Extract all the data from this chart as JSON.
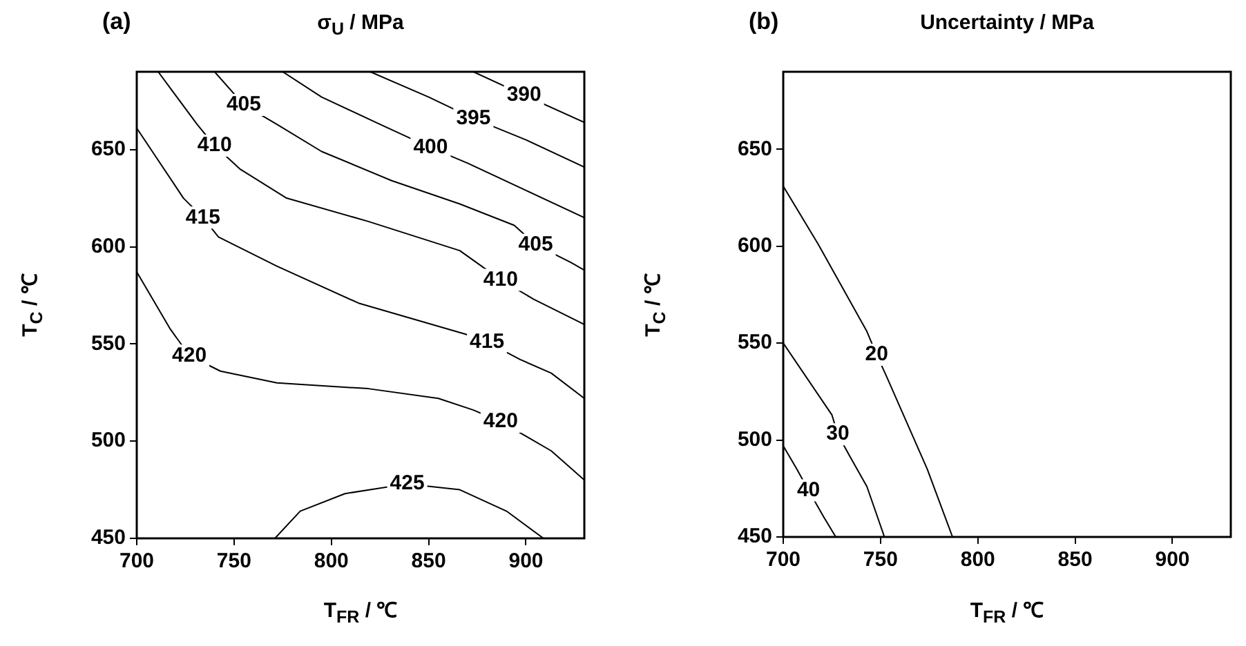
{
  "chart_data": [
    {
      "type": "line",
      "title": "σ$_{U}$ / MPa",
      "xlabel": "T$_{FR}$ / ℃",
      "ylabel": "T$_{C}$ / ℃",
      "xlim": [
        700,
        930
      ],
      "xticks": [
        700,
        750,
        800,
        850,
        900
      ],
      "ylim": [
        450,
        690
      ],
      "yticks": [
        450,
        500,
        550,
        600,
        650
      ],
      "series": [
        {
          "color": "#000000",
          "x": [
            873,
            899,
            930
          ],
          "values": [
            690,
            678,
            664
          ]
        },
        {
          "color": "#000000",
          "x": [
            820,
            850,
            873,
            900,
            930
          ],
          "values": [
            690,
            677,
            666,
            655,
            641
          ]
        },
        {
          "color": "#000000",
          "x": [
            775,
            795,
            825,
            851,
            870,
            900,
            930
          ],
          "values": [
            690,
            677,
            663,
            651,
            643,
            629,
            615
          ]
        },
        {
          "color": "#000000",
          "x": [
            740,
            755,
            772,
            795,
            831,
            866,
            894,
            905,
            923,
            930
          ],
          "values": [
            690,
            673,
            663,
            649,
            634,
            622,
            611,
            601,
            592,
            588
          ]
        },
        {
          "color": "#000000",
          "x": [
            711,
            731,
            740,
            753,
            777,
            819,
            866,
            887,
            904,
            930
          ],
          "values": [
            690,
            663,
            652,
            640,
            625,
            613,
            598,
            583,
            573,
            560
          ]
        },
        {
          "color": "#000000",
          "x": [
            700,
            724,
            734,
            742,
            772,
            814,
            869,
            880,
            897,
            913,
            930
          ],
          "values": [
            661,
            625,
            615,
            605,
            590,
            571,
            555,
            551,
            542,
            535,
            522
          ]
        },
        {
          "color": "#000000",
          "x": [
            700,
            717,
            727,
            743,
            772,
            819,
            855,
            873,
            887,
            901,
            913,
            930
          ],
          "values": [
            587,
            558,
            544,
            536,
            530,
            527,
            522,
            516,
            510,
            502,
            495,
            480
          ]
        },
        {
          "color": "#000000",
          "x": [
            771,
            784,
            807,
            839,
            866,
            890,
            909
          ],
          "values": [
            450,
            464,
            473,
            478,
            475,
            464,
            450
          ]
        }
      ],
      "annotations": [
        "(a)",
        {
          "text": "390",
          "x": 899,
          "y": 678
        },
        {
          "text": "395",
          "x": 873,
          "y": 666
        },
        {
          "text": "400",
          "x": 851,
          "y": 651
        },
        {
          "text": "405",
          "x": 755,
          "y": 673
        },
        {
          "text": "405",
          "x": 905,
          "y": 601
        },
        {
          "text": "410",
          "x": 740,
          "y": 652
        },
        {
          "text": "410",
          "x": 887,
          "y": 583
        },
        {
          "text": "415",
          "x": 734,
          "y": 615
        },
        {
          "text": "415",
          "x": 880,
          "y": 551
        },
        {
          "text": "420",
          "x": 727,
          "y": 544
        },
        {
          "text": "420",
          "x": 887,
          "y": 510
        },
        {
          "text": "425",
          "x": 839,
          "y": 478
        }
      ]
    },
    {
      "type": "line",
      "title": "Uncertainty / MPa",
      "xlabel": "T$_{FR}$ / ℃",
      "ylabel": "T$_{C}$ / ℃",
      "xlim": [
        700,
        930
      ],
      "xticks": [
        700,
        750,
        800,
        850,
        900
      ],
      "ylim": [
        450,
        690
      ],
      "yticks": [
        450,
        500,
        550,
        600,
        650
      ],
      "series": [
        {
          "color": "#000000",
          "x": [
            700,
            718,
            743,
            748,
            753,
            774,
            787
          ],
          "values": [
            631,
            601,
            556,
            544,
            533,
            485,
            450
          ]
        },
        {
          "color": "#000000",
          "x": [
            700,
            725,
            728,
            734,
            743,
            752
          ],
          "values": [
            550,
            513,
            503,
            492,
            476,
            450
          ]
        },
        {
          "color": "#000000",
          "x": [
            700,
            707,
            713,
            721,
            727
          ],
          "values": [
            497,
            485,
            474,
            460,
            450
          ]
        }
      ],
      "annotations": [
        "(b)",
        {
          "text": "20",
          "x": 748,
          "y": 544
        },
        {
          "text": "30",
          "x": 728,
          "y": 503
        },
        {
          "text": "40",
          "x": 713,
          "y": 474
        }
      ]
    }
  ]
}
